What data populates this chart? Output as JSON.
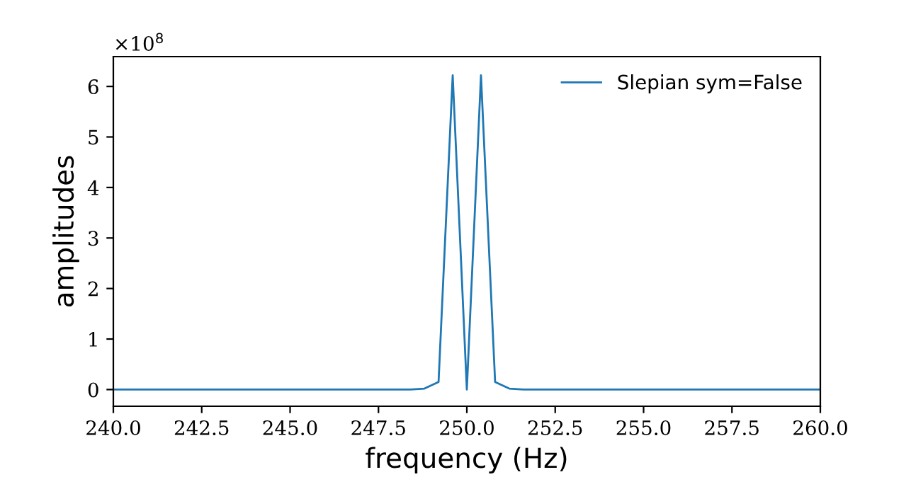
{
  "chart_data": {
    "type": "line",
    "xlabel": "frequency (Hz)",
    "ylabel": "amplitudes",
    "x": [
      240,
      248.4,
      248.8,
      249.2,
      249.6,
      250.0,
      250.4,
      250.8,
      251.2,
      251.6,
      260
    ],
    "series": [
      {
        "name": "Slepian sym=False",
        "color": "#1f77b4",
        "values": [
          0,
          0,
          0.02,
          0.15,
          6.22,
          0,
          6.22,
          0.15,
          0.02,
          0,
          0
        ]
      }
    ],
    "xlim": [
      240,
      260
    ],
    "xticks": [
      {
        "value": 240,
        "label": "240.0"
      },
      242.5,
      {
        "value": 245,
        "label": "245.0"
      },
      247.5,
      {
        "value": 250,
        "label": "250.0"
      },
      252.5,
      {
        "value": 255,
        "label": "255.0"
      },
      257.5,
      {
        "value": 260,
        "label": "260.0"
      }
    ],
    "ylim": [
      -0.33,
      6.59
    ],
    "yticks": [
      0,
      1,
      2,
      3,
      4,
      5,
      6
    ],
    "annotations": [
      "×10$^{8}$"
    ],
    "legend": "top right",
    "grid": false
  }
}
